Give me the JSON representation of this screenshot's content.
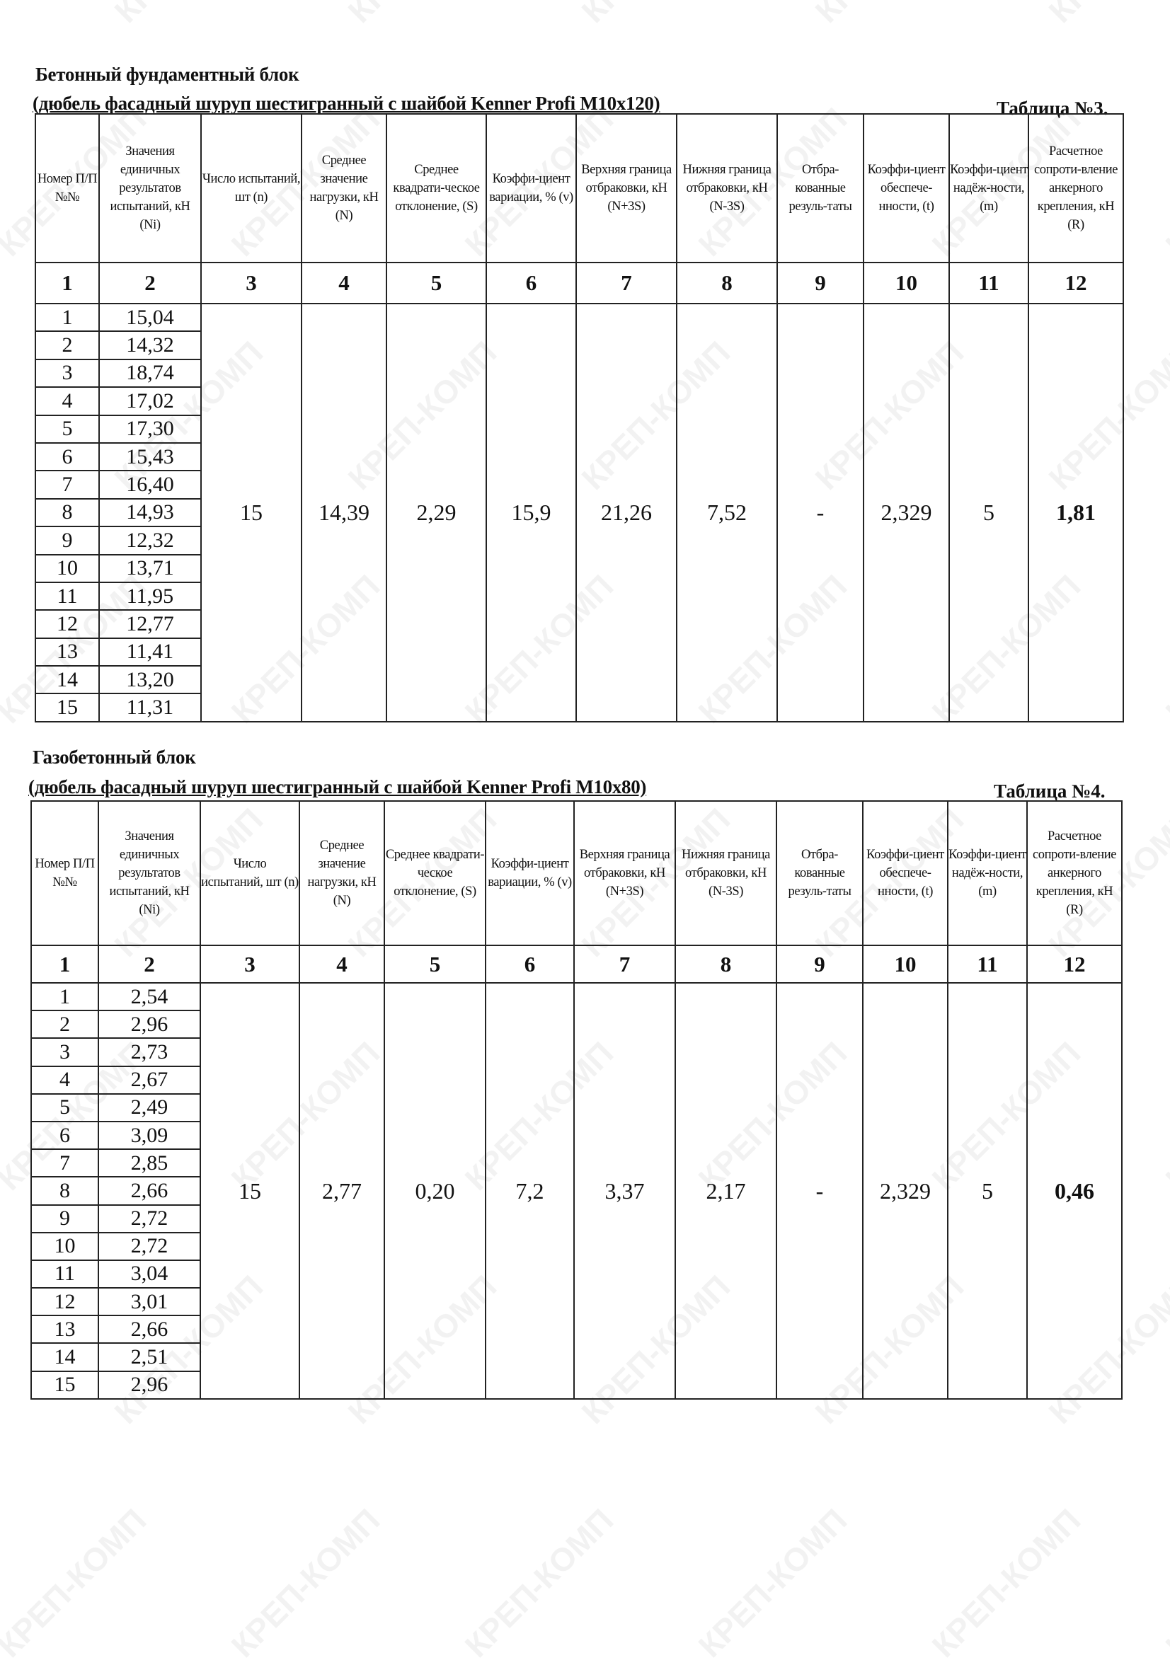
{
  "watermark": "КРЕП-КОМП",
  "columns": [
    "Номер П/П №№",
    "Значения единичных результатов испытаний, кН (Ni)",
    "Число испытаний, шт (n)",
    "Среднее значение нагрузки, кН (N)",
    "Среднее квадрати-ческое отклонение, (S)",
    "Коэффи-циент вариации, % (v)",
    "Верхняя граница отбраковки, кН (N+3S)",
    "Нижняя граница отбраковки, кН (N-3S)",
    "Отбра-кованные резуль-таты",
    "Коэффи-циент обеспече-нности, (t)",
    "Коэффи-циент надёж-ности, (m)",
    "Расчетное сопроти-вление анкерного крепления, кН (R)"
  ],
  "column_numbers": [
    "1",
    "2",
    "3",
    "4",
    "5",
    "6",
    "7",
    "8",
    "9",
    "10",
    "11",
    "12"
  ],
  "tables": [
    {
      "title": "Бетонный фундаментный блок",
      "subtitle": "(дюбель фасадный шуруп шестигранный с шайбой Kenner Profi M10x120)",
      "table_no": "Таблица №3.",
      "rows": [
        {
          "n": "1",
          "v": "15,04"
        },
        {
          "n": "2",
          "v": "14,32"
        },
        {
          "n": "3",
          "v": "18,74"
        },
        {
          "n": "4",
          "v": "17,02"
        },
        {
          "n": "5",
          "v": "17,30"
        },
        {
          "n": "6",
          "v": "15,43"
        },
        {
          "n": "7",
          "v": "16,40"
        },
        {
          "n": "8",
          "v": "14,93"
        },
        {
          "n": "9",
          "v": "12,32"
        },
        {
          "n": "10",
          "v": "13,71"
        },
        {
          "n": "11",
          "v": "11,95"
        },
        {
          "n": "12",
          "v": "12,77"
        },
        {
          "n": "13",
          "v": "11,41"
        },
        {
          "n": "14",
          "v": "13,20"
        },
        {
          "n": "15",
          "v": "11,31"
        }
      ],
      "summary": [
        "15",
        "14,39",
        "2,29",
        "15,9",
        "21,26",
        "7,52",
        "-",
        "2,329",
        "5",
        "1,81"
      ]
    },
    {
      "title": "Газобетонный блок",
      "subtitle": "(дюбель фасадный шуруп шестигранный с шайбой Kenner Profi M10x80)",
      "table_no": "Таблица №4.",
      "rows": [
        {
          "n": "1",
          "v": "2,54"
        },
        {
          "n": "2",
          "v": "2,96"
        },
        {
          "n": "3",
          "v": "2,73"
        },
        {
          "n": "4",
          "v": "2,67"
        },
        {
          "n": "5",
          "v": "2,49"
        },
        {
          "n": "6",
          "v": "3,09"
        },
        {
          "n": "7",
          "v": "2,85"
        },
        {
          "n": "8",
          "v": "2,66"
        },
        {
          "n": "9",
          "v": "2,72"
        },
        {
          "n": "10",
          "v": "2,72"
        },
        {
          "n": "11",
          "v": "3,04"
        },
        {
          "n": "12",
          "v": "3,01"
        },
        {
          "n": "13",
          "v": "2,66"
        },
        {
          "n": "14",
          "v": "2,51"
        },
        {
          "n": "15",
          "v": "2,96"
        }
      ],
      "summary": [
        "15",
        "2,77",
        "0,20",
        "7,2",
        "3,37",
        "2,17",
        "-",
        "2,329",
        "5",
        "0,46"
      ]
    }
  ]
}
